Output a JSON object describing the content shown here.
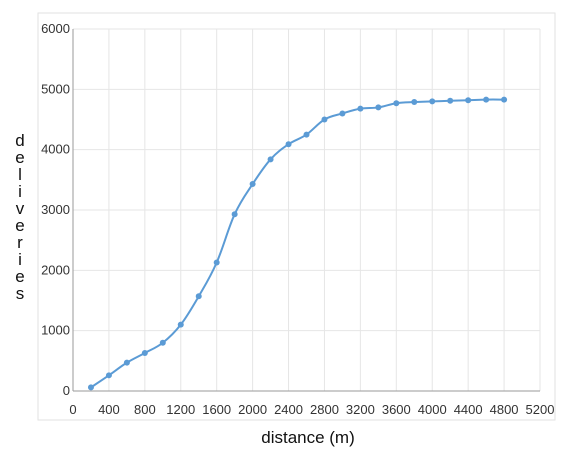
{
  "chart_data": {
    "type": "line",
    "title": "",
    "xlabel": "distance (m)",
    "ylabel": "deliveries",
    "xlim": [
      0,
      5200
    ],
    "ylim": [
      0,
      6000
    ],
    "x_ticks": [
      0,
      400,
      800,
      1200,
      1600,
      2000,
      2400,
      2800,
      3200,
      3600,
      4000,
      4400,
      4800,
      5200
    ],
    "y_ticks": [
      0,
      1000,
      2000,
      3000,
      4000,
      5000,
      6000
    ],
    "grid": true,
    "legend": "none",
    "line_color": "#5b9bd5",
    "series": [
      {
        "x": [
          200,
          400,
          600,
          800,
          1000,
          1200,
          1400,
          1600,
          1800,
          2000,
          2200,
          2400,
          2600,
          2800,
          3000,
          3200,
          3400,
          3600,
          3800,
          4000,
          4200,
          4400,
          4600,
          4800
        ],
        "values": [
          60,
          260,
          470,
          630,
          800,
          1100,
          1570,
          2130,
          2930,
          3430,
          3840,
          4090,
          4250,
          4500,
          4600,
          4680,
          4700,
          4770,
          4790,
          4800,
          4810,
          4820,
          4830,
          4830
        ]
      }
    ]
  }
}
